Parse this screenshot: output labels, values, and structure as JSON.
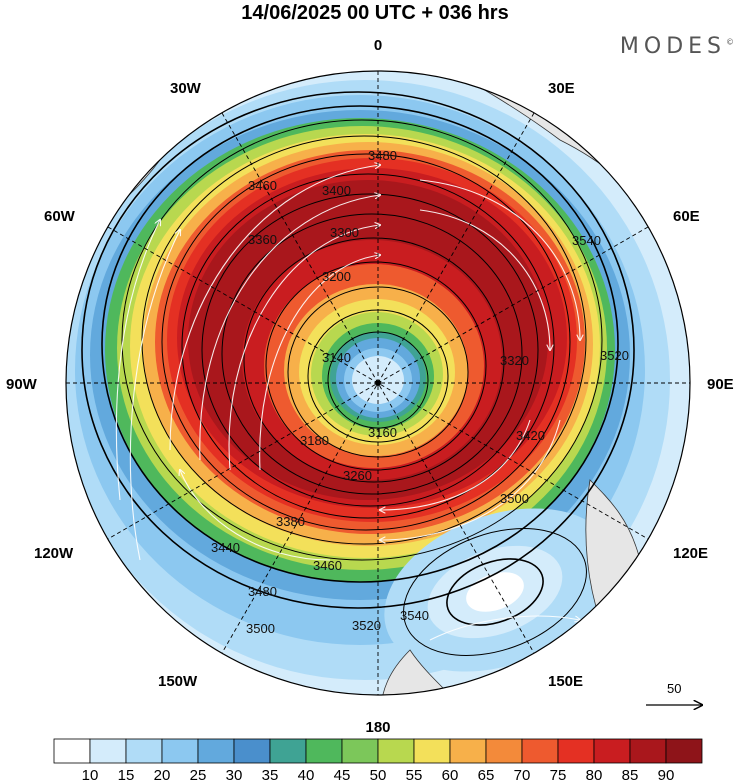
{
  "title": "14/06/2025  00 UTC  + 036 hrs",
  "brand": "MODES",
  "brand_mark": "©",
  "longitude_labels": {
    "top": "0",
    "bottom": "180",
    "left": "90W",
    "right": "90E",
    "upper_left_30": "30W",
    "upper_left_60": "60W",
    "lower_left_120": "120W",
    "lower_left_150": "150W",
    "upper_right_30": "30E",
    "upper_right_60": "60E",
    "lower_right_120": "120E",
    "lower_right_150": "150E"
  },
  "contour_labels": [
    "3480",
    "3460",
    "3400",
    "3360",
    "3300",
    "3200",
    "3140",
    "3180",
    "3160",
    "3260",
    "3380",
    "3440",
    "3500",
    "3520",
    "3540",
    "3460",
    "3480",
    "3500",
    "3520",
    "3540",
    "3320",
    "3420"
  ],
  "reference_vector": {
    "label": "50"
  },
  "colorbar": {
    "colors": [
      "#ffffff",
      "#d4ecfb",
      "#b0dcf7",
      "#8cc8f0",
      "#62a9dd",
      "#4a8fcc",
      "#3fa394",
      "#4fb85c",
      "#7cc75a",
      "#b8d84f",
      "#f3e05a",
      "#f7b04a",
      "#f38a3a",
      "#ee5a2f",
      "#e43023",
      "#c91d20",
      "#a9171c",
      "#8e1419"
    ],
    "ticks": [
      "10",
      "15",
      "20",
      "25",
      "30",
      "35",
      "40",
      "45",
      "50",
      "55",
      "60",
      "65",
      "70",
      "75",
      "80",
      "85",
      "90"
    ]
  }
}
